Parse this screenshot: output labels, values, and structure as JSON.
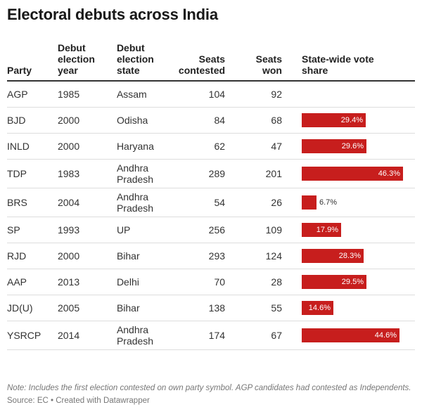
{
  "title": "Electoral debuts across India",
  "headers": {
    "party": "Party",
    "year_l1": "Debut",
    "year_l2": "election",
    "year_l3": "year",
    "state_l1": "Debut",
    "state_l2": "election",
    "state_l3": "state",
    "contested_l1": "Seats",
    "contested_l2": "contested",
    "won_l1": "Seats",
    "won_l2": "won",
    "vote_l1": "State-wide vote",
    "vote_l2": "share"
  },
  "rows": [
    {
      "party": "AGP",
      "year": "1985",
      "state_l1": "Assam",
      "state_l2": "",
      "contested": "104",
      "won": "92",
      "vote_label": "",
      "vote_value": null
    },
    {
      "party": "BJD",
      "year": "2000",
      "state_l1": "Odisha",
      "state_l2": "",
      "contested": "84",
      "won": "68",
      "vote_label": "29.4%",
      "vote_value": 29.4
    },
    {
      "party": "INLD",
      "year": "2000",
      "state_l1": "Haryana",
      "state_l2": "",
      "contested": "62",
      "won": "47",
      "vote_label": "29.6%",
      "vote_value": 29.6
    },
    {
      "party": "TDP",
      "year": "1983",
      "state_l1": "Andhra",
      "state_l2": "Pradesh",
      "contested": "289",
      "won": "201",
      "vote_label": "46.3%",
      "vote_value": 46.3
    },
    {
      "party": "BRS",
      "year": "2004",
      "state_l1": "Andhra",
      "state_l2": "Pradesh",
      "contested": "54",
      "won": "26",
      "vote_label": "6.7%",
      "vote_value": 6.7
    },
    {
      "party": "SP",
      "year": "1993",
      "state_l1": "UP",
      "state_l2": "",
      "contested": "256",
      "won": "109",
      "vote_label": "17.9%",
      "vote_value": 17.9
    },
    {
      "party": "RJD",
      "year": "2000",
      "state_l1": "Bihar",
      "state_l2": "",
      "contested": "293",
      "won": "124",
      "vote_label": "28.3%",
      "vote_value": 28.3
    },
    {
      "party": "AAP",
      "year": "2013",
      "state_l1": "Delhi",
      "state_l2": "",
      "contested": "70",
      "won": "28",
      "vote_label": "29.5%",
      "vote_value": 29.5
    },
    {
      "party": "JD(U)",
      "year": "2005",
      "state_l1": "Bihar",
      "state_l2": "",
      "contested": "138",
      "won": "55",
      "vote_label": "14.6%",
      "vote_value": 14.6
    },
    {
      "party": "YSRCP",
      "year": "2014",
      "state_l1": "Andhra",
      "state_l2": "Pradesh",
      "contested": "174",
      "won": "67",
      "vote_label": "44.6%",
      "vote_value": 44.6
    }
  ],
  "vote_scale_max": 46.3,
  "bar_color": "#c71e1d",
  "note": "Note: Includes the first election contested on own party symbol. AGP candidates had contested as Independents.",
  "source": "Source: EC • Created with Datawrapper"
}
